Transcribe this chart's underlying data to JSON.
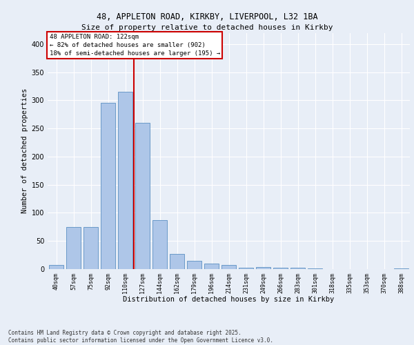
{
  "title_line1": "48, APPLETON ROAD, KIRKBY, LIVERPOOL, L32 1BA",
  "title_line2": "Size of property relative to detached houses in Kirkby",
  "xlabel": "Distribution of detached houses by size in Kirkby",
  "ylabel": "Number of detached properties",
  "categories": [
    "40sqm",
    "57sqm",
    "75sqm",
    "92sqm",
    "110sqm",
    "127sqm",
    "144sqm",
    "162sqm",
    "179sqm",
    "196sqm",
    "214sqm",
    "231sqm",
    "249sqm",
    "266sqm",
    "283sqm",
    "301sqm",
    "318sqm",
    "335sqm",
    "353sqm",
    "370sqm",
    "388sqm"
  ],
  "values": [
    7,
    75,
    75,
    295,
    315,
    260,
    87,
    27,
    15,
    10,
    7,
    2,
    4,
    3,
    2,
    1,
    0,
    0,
    0,
    0,
    1
  ],
  "bar_color": "#aec6e8",
  "bar_edge_color": "#5a8fc2",
  "background_color": "#e8eef7",
  "grid_color": "#ffffff",
  "vline_x": 4.5,
  "vline_color": "#cc0000",
  "annotation_text": "48 APPLETON ROAD: 122sqm\n← 82% of detached houses are smaller (902)\n18% of semi-detached houses are larger (195) →",
  "annotation_box_color": "#ffffff",
  "annotation_box_edge": "#cc0000",
  "footer_text": "Contains HM Land Registry data © Crown copyright and database right 2025.\nContains public sector information licensed under the Open Government Licence v3.0.",
  "ylim": [
    0,
    420
  ],
  "yticks": [
    0,
    50,
    100,
    150,
    200,
    250,
    300,
    350,
    400
  ]
}
